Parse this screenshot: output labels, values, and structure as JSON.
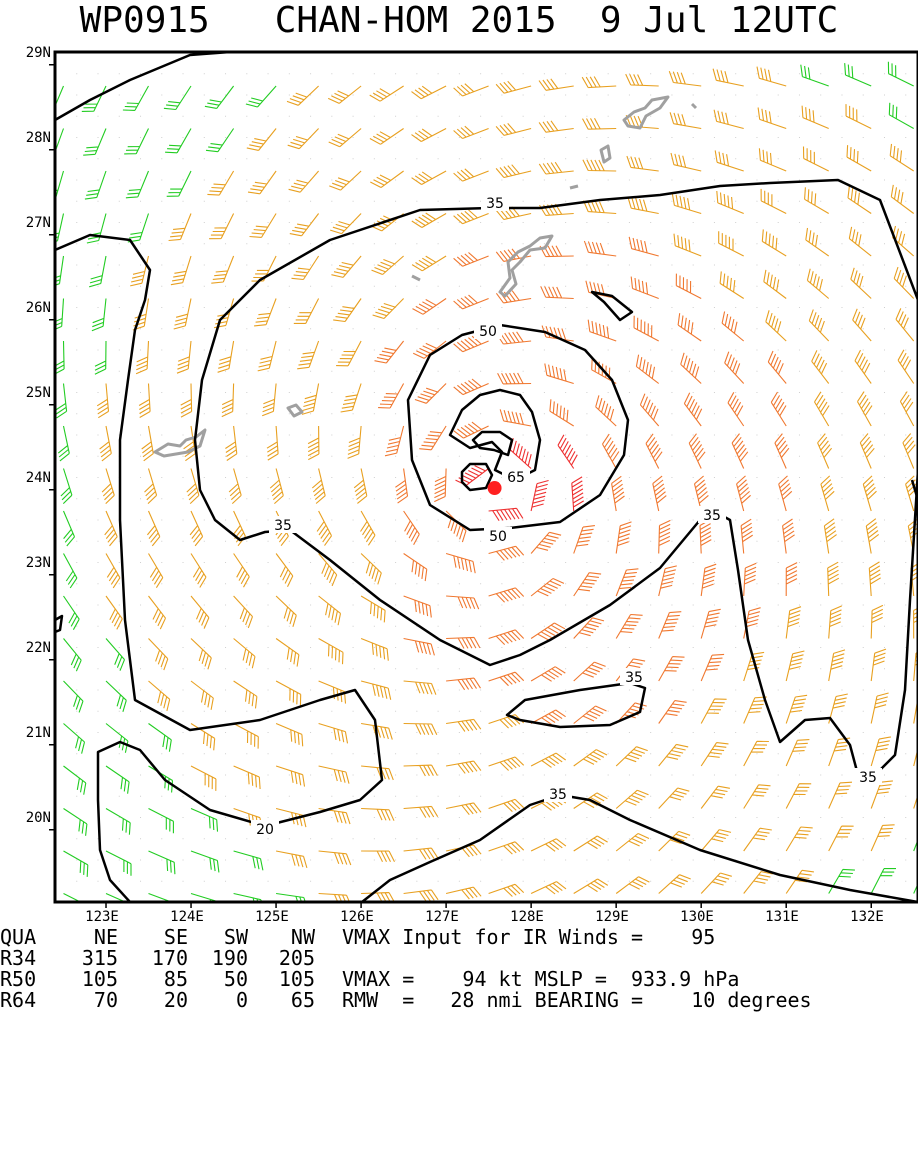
{
  "title": {
    "storm_id": "WP0915",
    "storm_name": "CHAN-HOM",
    "year": "2015",
    "date": "9 Jul",
    "time": "12UTC"
  },
  "map": {
    "lat_labels": [
      "29N",
      "28N",
      "27N",
      "26N",
      "25N",
      "24N",
      "23N",
      "22N",
      "21N",
      "20N"
    ],
    "lon_labels": [
      "123E",
      "124E",
      "125E",
      "126E",
      "127E",
      "128E",
      "129E",
      "130E",
      "131E",
      "132E"
    ],
    "contour_labels": [
      "35",
      "50",
      "65",
      "50",
      "35",
      "35",
      "35",
      "20",
      "35",
      "35"
    ],
    "storm_center": {
      "lon": 127.57,
      "lat": 24.02
    },
    "colors": {
      "barb_under_20": "#000000",
      "barb_20_35": "#22cc22",
      "barb_35_50": "#e8a020",
      "barb_50_65": "#f07830",
      "barb_over_65": "#ee3030",
      "land": "#a0a0a0",
      "contour": "#000000",
      "center": "#ff2020"
    }
  },
  "wind_radii": {
    "headers": [
      "QUA",
      "NE",
      "SE",
      "SW",
      "NW"
    ],
    "rows": [
      {
        "label": "R34",
        "values": [
          "315",
          "170",
          "190",
          "205"
        ]
      },
      {
        "label": "R50",
        "values": [
          "105",
          "85",
          "50",
          "105"
        ]
      },
      {
        "label": "R64",
        "values": [
          "70",
          "20",
          "0",
          "65"
        ]
      }
    ]
  },
  "stats": {
    "ir_line": "VMAX Input for IR Winds =    95",
    "vmax_line": "VMAX =    94 kt MSLP =  933.9 hPa",
    "rmw_line": "RMW  =   28 nmi BEARING =    10 degrees"
  }
}
